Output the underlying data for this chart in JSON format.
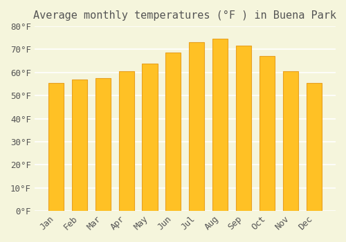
{
  "title": "Average monthly temperatures (°F ) in Buena Park",
  "months": [
    "Jan",
    "Feb",
    "Mar",
    "Apr",
    "May",
    "Jun",
    "Jul",
    "Aug",
    "Sep",
    "Oct",
    "Nov",
    "Dec"
  ],
  "values": [
    55.5,
    57.0,
    57.5,
    60.5,
    64.0,
    68.5,
    73.0,
    74.5,
    71.5,
    67.0,
    60.5,
    55.5
  ],
  "bar_color_face": "#FFC125",
  "bar_color_edge": "#E8A020",
  "background_color": "#F5F5DC",
  "grid_color": "#FFFFFF",
  "text_color": "#555555",
  "ylim": [
    0,
    80
  ],
  "ytick_step": 10,
  "title_fontsize": 11,
  "tick_fontsize": 9,
  "bar_width": 0.65
}
